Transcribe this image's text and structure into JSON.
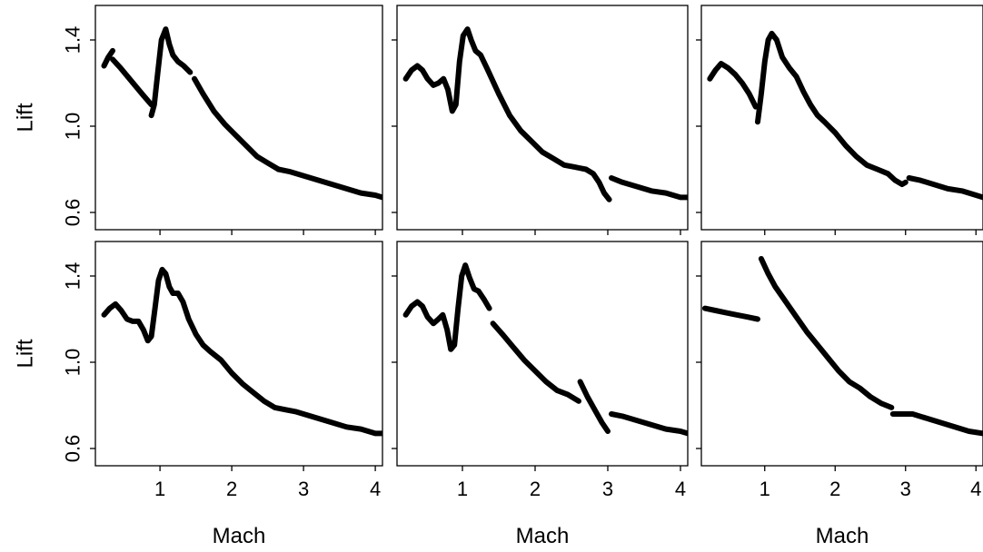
{
  "chart_data": [
    {
      "type": "line",
      "xlabel": "",
      "ylabel": "Lift",
      "xlim": [
        0.1,
        4.1
      ],
      "ylim": [
        0.52,
        1.56
      ],
      "xticks": [
        1,
        2,
        3,
        4
      ],
      "yticks": [
        0.6,
        1.0,
        1.4
      ],
      "show_x_tick_labels": false,
      "show_y_tick_labels": true,
      "series": [
        {
          "x": [
            0.22,
            0.28,
            0.34
          ],
          "y": [
            1.28,
            1.32,
            1.35
          ]
        },
        {
          "x": [
            0.34,
            0.45,
            0.55,
            0.65,
            0.75,
            0.88
          ],
          "y": [
            1.31,
            1.27,
            1.23,
            1.19,
            1.15,
            1.1
          ]
        },
        {
          "x": [
            0.88,
            0.92,
            0.97,
            1.02,
            1.08,
            1.13,
            1.18,
            1.25,
            1.33,
            1.42
          ],
          "y": [
            1.05,
            1.1,
            1.25,
            1.4,
            1.45,
            1.38,
            1.33,
            1.3,
            1.28,
            1.25
          ]
        },
        {
          "x": [
            1.48,
            1.6,
            1.75,
            1.9,
            2.05,
            2.2,
            2.35,
            2.5,
            2.65
          ],
          "y": [
            1.22,
            1.15,
            1.07,
            1.01,
            0.96,
            0.91,
            0.86,
            0.83,
            0.8
          ]
        },
        {
          "x": [
            2.65,
            2.8,
            3.0,
            3.2,
            3.4,
            3.6,
            3.8,
            4.0,
            4.1
          ],
          "y": [
            0.8,
            0.79,
            0.77,
            0.75,
            0.73,
            0.71,
            0.69,
            0.68,
            0.67
          ]
        }
      ]
    },
    {
      "type": "line",
      "xlabel": "",
      "ylabel": "",
      "xlim": [
        0.1,
        4.1
      ],
      "ylim": [
        0.52,
        1.56
      ],
      "xticks": [
        1,
        2,
        3,
        4
      ],
      "yticks": [
        0.6,
        1.0,
        1.4
      ],
      "show_x_tick_labels": false,
      "show_y_tick_labels": false,
      "series": [
        {
          "x": [
            0.22,
            0.3,
            0.38,
            0.45,
            0.52,
            0.6,
            0.67,
            0.74,
            0.8,
            0.86,
            0.91,
            0.96,
            1.01,
            1.07,
            1.12,
            1.18,
            1.25,
            1.35,
            1.5,
            1.65,
            1.8,
            1.95,
            2.1,
            2.25,
            2.4,
            2.55,
            2.7,
            2.8,
            2.88,
            2.95,
            3.02
          ],
          "y": [
            1.22,
            1.26,
            1.28,
            1.26,
            1.22,
            1.19,
            1.2,
            1.22,
            1.17,
            1.07,
            1.1,
            1.3,
            1.42,
            1.45,
            1.4,
            1.35,
            1.33,
            1.26,
            1.15,
            1.05,
            0.98,
            0.93,
            0.88,
            0.85,
            0.82,
            0.81,
            0.8,
            0.78,
            0.74,
            0.69,
            0.66
          ]
        },
        {
          "x": [
            3.05,
            3.2,
            3.4,
            3.6,
            3.8,
            4.0,
            4.1
          ],
          "y": [
            0.76,
            0.74,
            0.72,
            0.7,
            0.69,
            0.67,
            0.67
          ]
        }
      ]
    },
    {
      "type": "line",
      "xlabel": "",
      "ylabel": "",
      "xlim": [
        0.1,
        4.1
      ],
      "ylim": [
        0.52,
        1.56
      ],
      "xticks": [
        1,
        2,
        3,
        4
      ],
      "yticks": [
        0.6,
        1.0,
        1.4
      ],
      "show_x_tick_labels": false,
      "show_y_tick_labels": false,
      "series": [
        {
          "x": [
            0.22,
            0.3,
            0.38,
            0.48,
            0.58,
            0.68,
            0.78,
            0.87
          ],
          "y": [
            1.22,
            1.26,
            1.29,
            1.27,
            1.24,
            1.2,
            1.15,
            1.09
          ]
        },
        {
          "x": [
            0.9,
            0.95,
            1.0,
            1.05,
            1.1,
            1.17,
            1.25,
            1.35,
            1.45,
            1.55,
            1.65,
            1.75,
            1.85,
            2.0,
            2.15,
            2.3,
            2.45,
            2.6,
            2.75,
            2.85,
            2.95,
            3.0
          ],
          "y": [
            1.02,
            1.15,
            1.3,
            1.4,
            1.43,
            1.4,
            1.32,
            1.27,
            1.23,
            1.16,
            1.1,
            1.05,
            1.02,
            0.97,
            0.91,
            0.86,
            0.82,
            0.8,
            0.78,
            0.75,
            0.73,
            0.74
          ]
        },
        {
          "x": [
            3.05,
            3.2,
            3.4,
            3.6,
            3.8,
            4.0,
            4.1
          ],
          "y": [
            0.76,
            0.75,
            0.73,
            0.71,
            0.7,
            0.68,
            0.67
          ]
        }
      ]
    },
    {
      "type": "line",
      "xlabel": "",
      "ylabel": "Lift",
      "xlim": [
        0.1,
        4.1
      ],
      "ylim": [
        0.52,
        1.56
      ],
      "xticks": [
        1,
        2,
        3,
        4
      ],
      "yticks": [
        0.6,
        1.0,
        1.4
      ],
      "show_x_tick_labels": true,
      "show_y_tick_labels": true,
      "series": [
        {
          "x": [
            0.22,
            0.3,
            0.38,
            0.46,
            0.54,
            0.62,
            0.7,
            0.77,
            0.83,
            0.88,
            0.93,
            0.98,
            1.03,
            1.08,
            1.13,
            1.18,
            1.25,
            1.32,
            1.4,
            1.5,
            1.6,
            1.7,
            1.85,
            2.0,
            2.15,
            2.3,
            2.45,
            2.6,
            2.75,
            2.9,
            3.0,
            3.2,
            3.4,
            3.6,
            3.8,
            4.0,
            4.1
          ],
          "y": [
            1.22,
            1.25,
            1.27,
            1.24,
            1.2,
            1.19,
            1.19,
            1.15,
            1.1,
            1.12,
            1.25,
            1.38,
            1.43,
            1.41,
            1.35,
            1.32,
            1.32,
            1.28,
            1.2,
            1.13,
            1.08,
            1.05,
            1.01,
            0.95,
            0.9,
            0.86,
            0.82,
            0.79,
            0.78,
            0.77,
            0.76,
            0.74,
            0.72,
            0.7,
            0.69,
            0.67,
            0.67
          ]
        }
      ]
    },
    {
      "type": "line",
      "xlabel": "",
      "ylabel": "",
      "xlim": [
        0.1,
        4.1
      ],
      "ylim": [
        0.52,
        1.56
      ],
      "xticks": [
        1,
        2,
        3,
        4
      ],
      "yticks": [
        0.6,
        1.0,
        1.4
      ],
      "show_x_tick_labels": true,
      "show_y_tick_labels": false,
      "series": [
        {
          "x": [
            0.22,
            0.3,
            0.38,
            0.45,
            0.52,
            0.6,
            0.67,
            0.73,
            0.79,
            0.84,
            0.89,
            0.94,
            0.99,
            1.04,
            1.1,
            1.16,
            1.22,
            1.3,
            1.37
          ],
          "y": [
            1.22,
            1.26,
            1.28,
            1.26,
            1.21,
            1.18,
            1.2,
            1.22,
            1.15,
            1.06,
            1.08,
            1.25,
            1.4,
            1.45,
            1.39,
            1.34,
            1.33,
            1.29,
            1.25
          ]
        },
        {
          "x": [
            1.42,
            1.55,
            1.7,
            1.85,
            2.0,
            2.15,
            2.3,
            2.45,
            2.6
          ],
          "y": [
            1.18,
            1.13,
            1.07,
            1.01,
            0.96,
            0.91,
            0.87,
            0.85,
            0.82
          ]
        },
        {
          "x": [
            2.62,
            2.72,
            2.82,
            2.92,
            3.0
          ],
          "y": [
            0.91,
            0.84,
            0.78,
            0.72,
            0.68
          ]
        },
        {
          "x": [
            3.05,
            3.2,
            3.4,
            3.6,
            3.8,
            4.0,
            4.1
          ],
          "y": [
            0.76,
            0.75,
            0.73,
            0.71,
            0.69,
            0.68,
            0.67
          ]
        }
      ]
    },
    {
      "type": "line",
      "xlabel": "",
      "ylabel": "",
      "xlim": [
        0.1,
        4.1
      ],
      "ylim": [
        0.52,
        1.56
      ],
      "xticks": [
        1,
        2,
        3,
        4
      ],
      "yticks": [
        0.6,
        1.0,
        1.4
      ],
      "show_x_tick_labels": true,
      "show_y_tick_labels": false,
      "series": [
        {
          "x": [
            0.15,
            0.3,
            0.45,
            0.6,
            0.75,
            0.9
          ],
          "y": [
            1.25,
            1.24,
            1.23,
            1.22,
            1.21,
            1.2
          ]
        },
        {
          "x": [
            0.95,
            1.05,
            1.15,
            1.3,
            1.45,
            1.6,
            1.75,
            1.9,
            2.05,
            2.2,
            2.35,
            2.5,
            2.65,
            2.8
          ],
          "y": [
            1.48,
            1.41,
            1.35,
            1.28,
            1.21,
            1.14,
            1.08,
            1.02,
            0.96,
            0.91,
            0.88,
            0.84,
            0.81,
            0.79
          ]
        },
        {
          "x": [
            2.82,
            2.95,
            3.1,
            3.3,
            3.5,
            3.7,
            3.9,
            4.1
          ],
          "y": [
            0.76,
            0.76,
            0.76,
            0.74,
            0.72,
            0.7,
            0.68,
            0.67
          ]
        }
      ]
    }
  ],
  "axis_labels": {
    "ylabel": "Lift",
    "xlabel": "Mach"
  }
}
